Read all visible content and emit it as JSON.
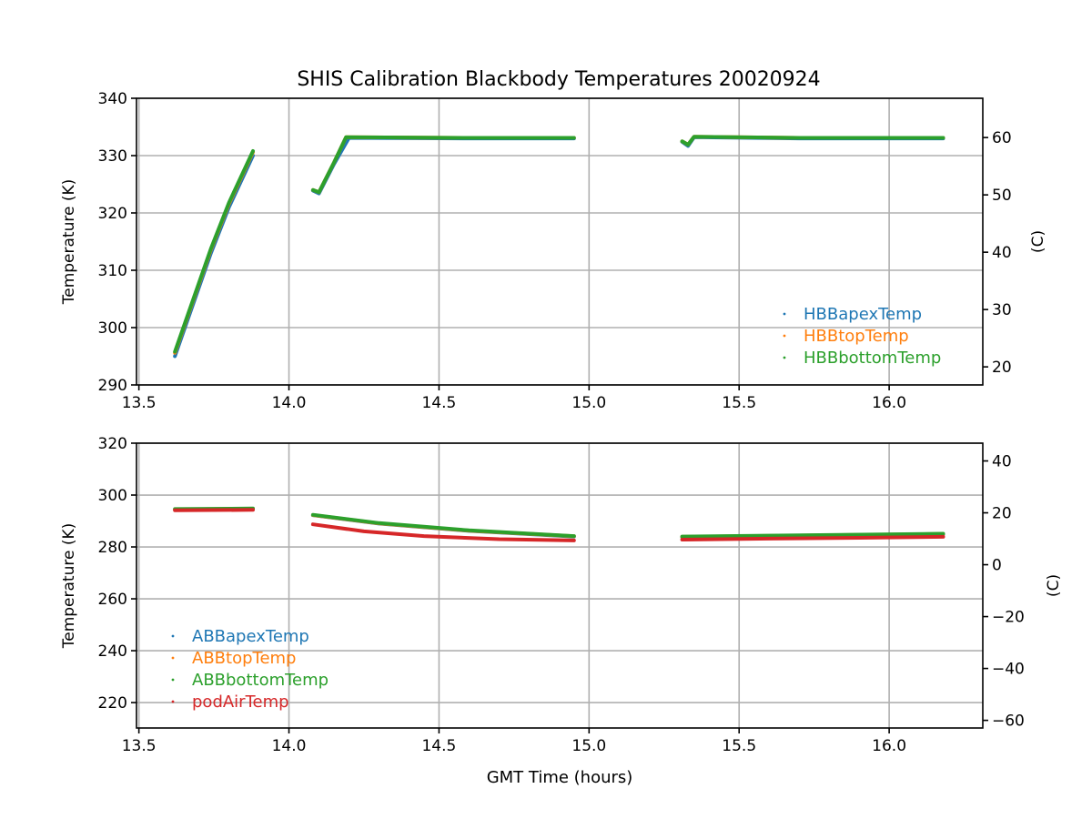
{
  "chart_data": {
    "title": "SHIS Calibration Blackbody Temperatures 20020924",
    "xlabel": "GMT Time (hours)",
    "colors": {
      "C0": "#1f77b4",
      "C1": "#ff7f0e",
      "C2": "#2ca02c",
      "C3": "#d62728",
      "grid": "#b0b0b0",
      "axis": "#000000"
    },
    "panels": [
      {
        "type": "scatter",
        "ylabel": "Temperature (K)",
        "ylabel_right": "(C)",
        "xlim": [
          13.492,
          16.312
        ],
        "ylim": [
          290,
          340
        ],
        "xticks": [
          13.5,
          14.0,
          14.5,
          15.0,
          15.5,
          16.0
        ],
        "xtick_labels": [
          "13.5",
          "14.0",
          "14.5",
          "15.0",
          "15.5",
          "16.0"
        ],
        "yticks": [
          290,
          300,
          310,
          320,
          330,
          340
        ],
        "ytick_labels": [
          "290",
          "300",
          "310",
          "320",
          "330",
          "340"
        ],
        "yticks_right_C": [
          20,
          30,
          40,
          50,
          60
        ],
        "ytick_right_labels": [
          "20",
          "30",
          "40",
          "50",
          "60"
        ],
        "grid": true,
        "legend_loc": "lower-right",
        "series": [
          {
            "name": "HBBapexTemp",
            "color": "#1f77b4",
            "segments": [
              [
                [
                  13.62,
                  295.0
                ],
                [
                  13.68,
                  304.0
                ],
                [
                  13.74,
                  313.0
                ],
                [
                  13.8,
                  321.0
                ],
                [
                  13.88,
                  330.0
                ]
              ],
              [
                [
                  14.08,
                  323.9
                ],
                [
                  14.1,
                  323.4
                ],
                [
                  14.15,
                  328.5
                ],
                [
                  14.2,
                  333.1
                ],
                [
                  14.6,
                  333.0
                ],
                [
                  14.95,
                  333.0
                ]
              ],
              [
                [
                  15.31,
                  332.4
                ],
                [
                  15.33,
                  331.7
                ],
                [
                  15.35,
                  333.2
                ],
                [
                  15.7,
                  333.0
                ],
                [
                  16.18,
                  333.0
                ]
              ]
            ]
          },
          {
            "name": "HBBtopTemp",
            "color": "#ff7f0e",
            "segments": [
              [
                [
                  13.62,
                  295.6
                ],
                [
                  13.68,
                  304.6
                ],
                [
                  13.74,
                  313.6
                ],
                [
                  13.8,
                  321.6
                ],
                [
                  13.88,
                  330.6
                ]
              ],
              [
                [
                  14.08,
                  324.0
                ],
                [
                  14.1,
                  323.6
                ],
                [
                  14.15,
                  328.8
                ],
                [
                  14.19,
                  333.2
                ],
                [
                  14.6,
                  333.1
                ],
                [
                  14.95,
                  333.1
                ]
              ],
              [
                [
                  15.31,
                  332.5
                ],
                [
                  15.33,
                  331.9
                ],
                [
                  15.35,
                  333.3
                ],
                [
                  15.7,
                  333.1
                ],
                [
                  16.18,
                  333.1
                ]
              ]
            ]
          },
          {
            "name": "HBBbottomTemp",
            "color": "#2ca02c",
            "segments": [
              [
                [
                  13.62,
                  295.8
                ],
                [
                  13.68,
                  304.8
                ],
                [
                  13.74,
                  313.8
                ],
                [
                  13.8,
                  321.8
                ],
                [
                  13.88,
                  330.8
                ]
              ],
              [
                [
                  14.08,
                  324.0
                ],
                [
                  14.1,
                  323.6
                ],
                [
                  14.15,
                  328.8
                ],
                [
                  14.19,
                  333.2
                ],
                [
                  14.6,
                  333.1
                ],
                [
                  14.95,
                  333.1
                ]
              ],
              [
                [
                  15.31,
                  332.5
                ],
                [
                  15.33,
                  331.9
                ],
                [
                  15.35,
                  333.3
                ],
                [
                  15.7,
                  333.1
                ],
                [
                  16.18,
                  333.1
                ]
              ]
            ]
          }
        ]
      },
      {
        "type": "scatter",
        "ylabel": "Temperature (K)",
        "ylabel_right": "(C)",
        "xlim": [
          13.492,
          16.312
        ],
        "ylim": [
          210.2,
          320
        ],
        "xticks": [
          13.5,
          14.0,
          14.5,
          15.0,
          15.5,
          16.0
        ],
        "xtick_labels": [
          "13.5",
          "14.0",
          "14.5",
          "15.0",
          "15.5",
          "16.0"
        ],
        "yticks": [
          220,
          240,
          260,
          280,
          300,
          320
        ],
        "ytick_labels": [
          "220",
          "240",
          "260",
          "280",
          "300",
          "320"
        ],
        "yticks_right_C": [
          -60,
          -40,
          -20,
          0,
          20,
          40
        ],
        "ytick_right_labels": [
          "−60",
          "−40",
          "−20",
          "0",
          "20",
          "40"
        ],
        "grid": true,
        "legend_loc": "lower-left",
        "series": [
          {
            "name": "ABBapexTemp",
            "color": "#1f77b4",
            "segments": [
              [
                [
                  13.62,
                  294.4
                ],
                [
                  13.88,
                  294.6
                ]
              ],
              [
                [
                  14.08,
                  292.2
                ],
                [
                  14.3,
                  289.0
                ],
                [
                  14.6,
                  286.2
                ],
                [
                  14.95,
                  284.0
                ]
              ],
              [
                [
                  15.31,
                  283.8
                ],
                [
                  15.7,
                  284.3
                ],
                [
                  16.18,
                  284.9
                ]
              ]
            ]
          },
          {
            "name": "ABBtopTemp",
            "color": "#ff7f0e",
            "segments": [
              [
                [
                  13.62,
                  294.5
                ],
                [
                  13.88,
                  294.7
                ]
              ],
              [
                [
                  14.08,
                  292.3
                ],
                [
                  14.3,
                  289.1
                ],
                [
                  14.6,
                  286.3
                ],
                [
                  14.95,
                  284.1
                ]
              ],
              [
                [
                  15.31,
                  283.9
                ],
                [
                  15.7,
                  284.4
                ],
                [
                  16.18,
                  285.0
                ]
              ]
            ]
          },
          {
            "name": "ABBbottomTemp",
            "color": "#2ca02c",
            "segments": [
              [
                [
                  13.62,
                  294.6
                ],
                [
                  13.88,
                  294.8
                ]
              ],
              [
                [
                  14.08,
                  292.4
                ],
                [
                  14.3,
                  289.2
                ],
                [
                  14.6,
                  286.4
                ],
                [
                  14.95,
                  284.2
                ]
              ],
              [
                [
                  15.31,
                  284.0
                ],
                [
                  15.7,
                  284.5
                ],
                [
                  16.18,
                  285.1
                ]
              ]
            ]
          },
          {
            "name": "podAirTemp",
            "color": "#d62728",
            "segments": [
              [
                [
                  13.62,
                  294.1
                ],
                [
                  13.88,
                  294.3
                ]
              ],
              [
                [
                  14.08,
                  288.7
                ],
                [
                  14.25,
                  286.0
                ],
                [
                  14.45,
                  284.2
                ],
                [
                  14.7,
                  283.0
                ],
                [
                  14.95,
                  282.5
                ]
              ],
              [
                [
                  15.31,
                  282.8
                ],
                [
                  15.6,
                  283.2
                ],
                [
                  15.9,
                  283.5
                ],
                [
                  16.18,
                  283.9
                ]
              ]
            ]
          }
        ]
      }
    ]
  }
}
